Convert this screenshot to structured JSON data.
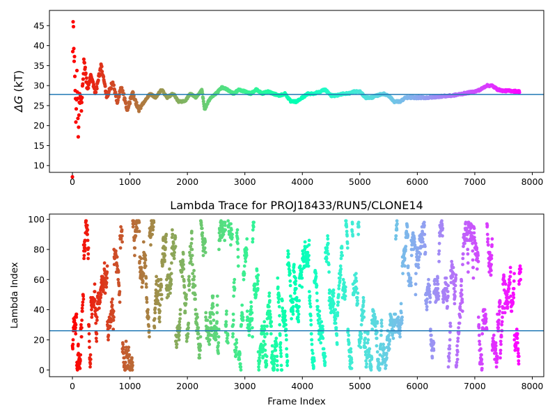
{
  "chart_data": [
    {
      "type": "scatter",
      "title": "",
      "xlabel": "",
      "ylabel_symbol": "ΔG",
      "ylabel_unit": " (kT)",
      "xlim": [
        -400,
        8200
      ],
      "ylim": [
        8.3,
        48.8
      ],
      "xticks": [
        0,
        1000,
        2000,
        3000,
        4000,
        5000,
        6000,
        7000,
        8000
      ],
      "yticks": [
        10,
        15,
        20,
        25,
        30,
        35,
        40,
        45
      ],
      "colormap": "rainbow (red at frame 0 → violet at last frame)",
      "frame_count": 7800,
      "reference_line": {
        "y": 27.8,
        "color": "#1f77b4"
      },
      "grid": false,
      "trace_anchors": [
        [
          0,
          10
        ],
        [
          8,
          47
        ],
        [
          15,
          42
        ],
        [
          25,
          40
        ],
        [
          40,
          34
        ],
        [
          60,
          22
        ],
        [
          80,
          32
        ],
        [
          100,
          19
        ],
        [
          130,
          28
        ],
        [
          160,
          24
        ],
        [
          200,
          37
        ],
        [
          260,
          29
        ],
        [
          320,
          33
        ],
        [
          400,
          28
        ],
        [
          500,
          35
        ],
        [
          600,
          27
        ],
        [
          700,
          31
        ],
        [
          780,
          26
        ],
        [
          850,
          30
        ],
        [
          950,
          24
        ],
        [
          1050,
          28
        ],
        [
          1150,
          24
        ],
        [
          1250,
          26
        ],
        [
          1350,
          28
        ],
        [
          1450,
          27
        ],
        [
          1550,
          29
        ],
        [
          1650,
          27
        ],
        [
          1750,
          28
        ],
        [
          1850,
          26
        ],
        [
          1950,
          26
        ],
        [
          2050,
          28
        ],
        [
          2150,
          27
        ],
        [
          2250,
          29
        ],
        [
          2300,
          24
        ],
        [
          2400,
          27
        ],
        [
          2500,
          28
        ],
        [
          2600,
          29.5
        ],
        [
          2700,
          29
        ],
        [
          2800,
          28
        ],
        [
          2900,
          29
        ],
        [
          3000,
          28.5
        ],
        [
          3100,
          28
        ],
        [
          3200,
          29
        ],
        [
          3300,
          28
        ],
        [
          3400,
          28.5
        ],
        [
          3500,
          28
        ],
        [
          3600,
          27.5
        ],
        [
          3700,
          28
        ],
        [
          3800,
          26
        ],
        [
          3900,
          26
        ],
        [
          4000,
          27
        ],
        [
          4100,
          28
        ],
        [
          4200,
          28
        ],
        [
          4300,
          28.5
        ],
        [
          4400,
          29
        ],
        [
          4500,
          27.5
        ],
        [
          4600,
          27.5
        ],
        [
          4700,
          28
        ],
        [
          4800,
          28
        ],
        [
          4900,
          28.5
        ],
        [
          5000,
          28.5
        ],
        [
          5100,
          27
        ],
        [
          5200,
          27
        ],
        [
          5300,
          27.5
        ],
        [
          5400,
          28
        ],
        [
          5500,
          27.5
        ],
        [
          5600,
          26
        ],
        [
          5700,
          26
        ],
        [
          5800,
          27
        ],
        [
          5900,
          27
        ],
        [
          6000,
          27
        ],
        [
          6200,
          27
        ],
        [
          6400,
          27.3
        ],
        [
          6600,
          27.5
        ],
        [
          6800,
          28
        ],
        [
          7000,
          28.5
        ],
        [
          7100,
          29
        ],
        [
          7200,
          30
        ],
        [
          7300,
          30
        ],
        [
          7400,
          29
        ],
        [
          7500,
          28.7
        ],
        [
          7600,
          28.7
        ],
        [
          7780,
          28.5
        ]
      ]
    },
    {
      "type": "scatter",
      "title": "Lambda Trace for PROJ18433/RUN5/CLONE14",
      "xlabel": "Frame Index",
      "ylabel": "Lambda Index",
      "xlim": [
        -400,
        8200
      ],
      "ylim": [
        -4.5,
        103.5
      ],
      "xticks": [
        0,
        1000,
        2000,
        3000,
        4000,
        5000,
        6000,
        7000,
        8000
      ],
      "yticks": [
        0,
        20,
        40,
        60,
        80,
        100
      ],
      "colormap": "rainbow (red at frame 0 → violet at last frame)",
      "frame_count": 7800,
      "lambda_range": [
        0,
        99
      ],
      "reference_line": {
        "y": 26,
        "color": "#1f77b4"
      },
      "grid": false
    }
  ]
}
